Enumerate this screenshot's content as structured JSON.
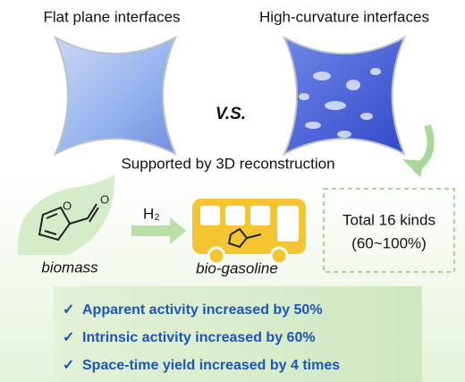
{
  "left_title": "Flat plane interfaces",
  "right_title": "High-curvature interfaces",
  "versus": "V.S.",
  "caption": "Supported by 3D reconstruction",
  "reaction": {
    "reagent": "H₂",
    "reactant": "biomass",
    "product": "bio-gasoline"
  },
  "summary": {
    "line1": "Total 16 kinds",
    "line2": "(60~100%)"
  },
  "highlights": [
    "Apparent activity increased by 50%",
    "Intrinsic activity increased by 60%",
    "Space-time yield increased by 4 times"
  ]
}
